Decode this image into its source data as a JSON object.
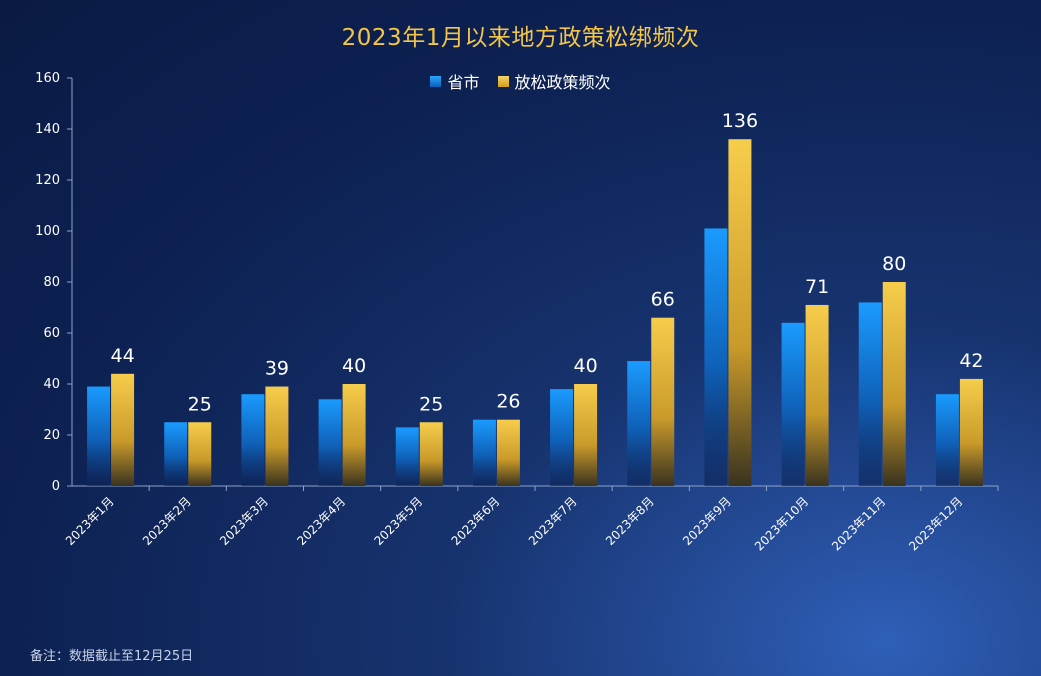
{
  "chart_data": {
    "type": "bar",
    "title": "2023年1月以来地方政策松绑频次",
    "categories": [
      "2023年1月",
      "2023年2月",
      "2023年3月",
      "2023年4月",
      "2023年5月",
      "2023年6月",
      "2023年7月",
      "2023年8月",
      "2023年9月",
      "2023年10月",
      "2023年11月",
      "2023年12月"
    ],
    "series": [
      {
        "name": "省市",
        "values": [
          39,
          25,
          36,
          34,
          23,
          26,
          38,
          49,
          101,
          64,
          72,
          36
        ],
        "color": "#1e90ff"
      },
      {
        "name": "放松政策频次",
        "values": [
          44,
          25,
          39,
          40,
          25,
          26,
          40,
          66,
          136,
          71,
          80,
          42
        ],
        "color": "#f2c141"
      }
    ],
    "data_labels_series": "放松政策频次",
    "ylim": [
      0,
      160
    ],
    "yticks": [
      0,
      20,
      40,
      60,
      80,
      100,
      120,
      140,
      160
    ],
    "grid": false,
    "legend": "top-center"
  },
  "footnote": "备注：数据截止至12月25日"
}
